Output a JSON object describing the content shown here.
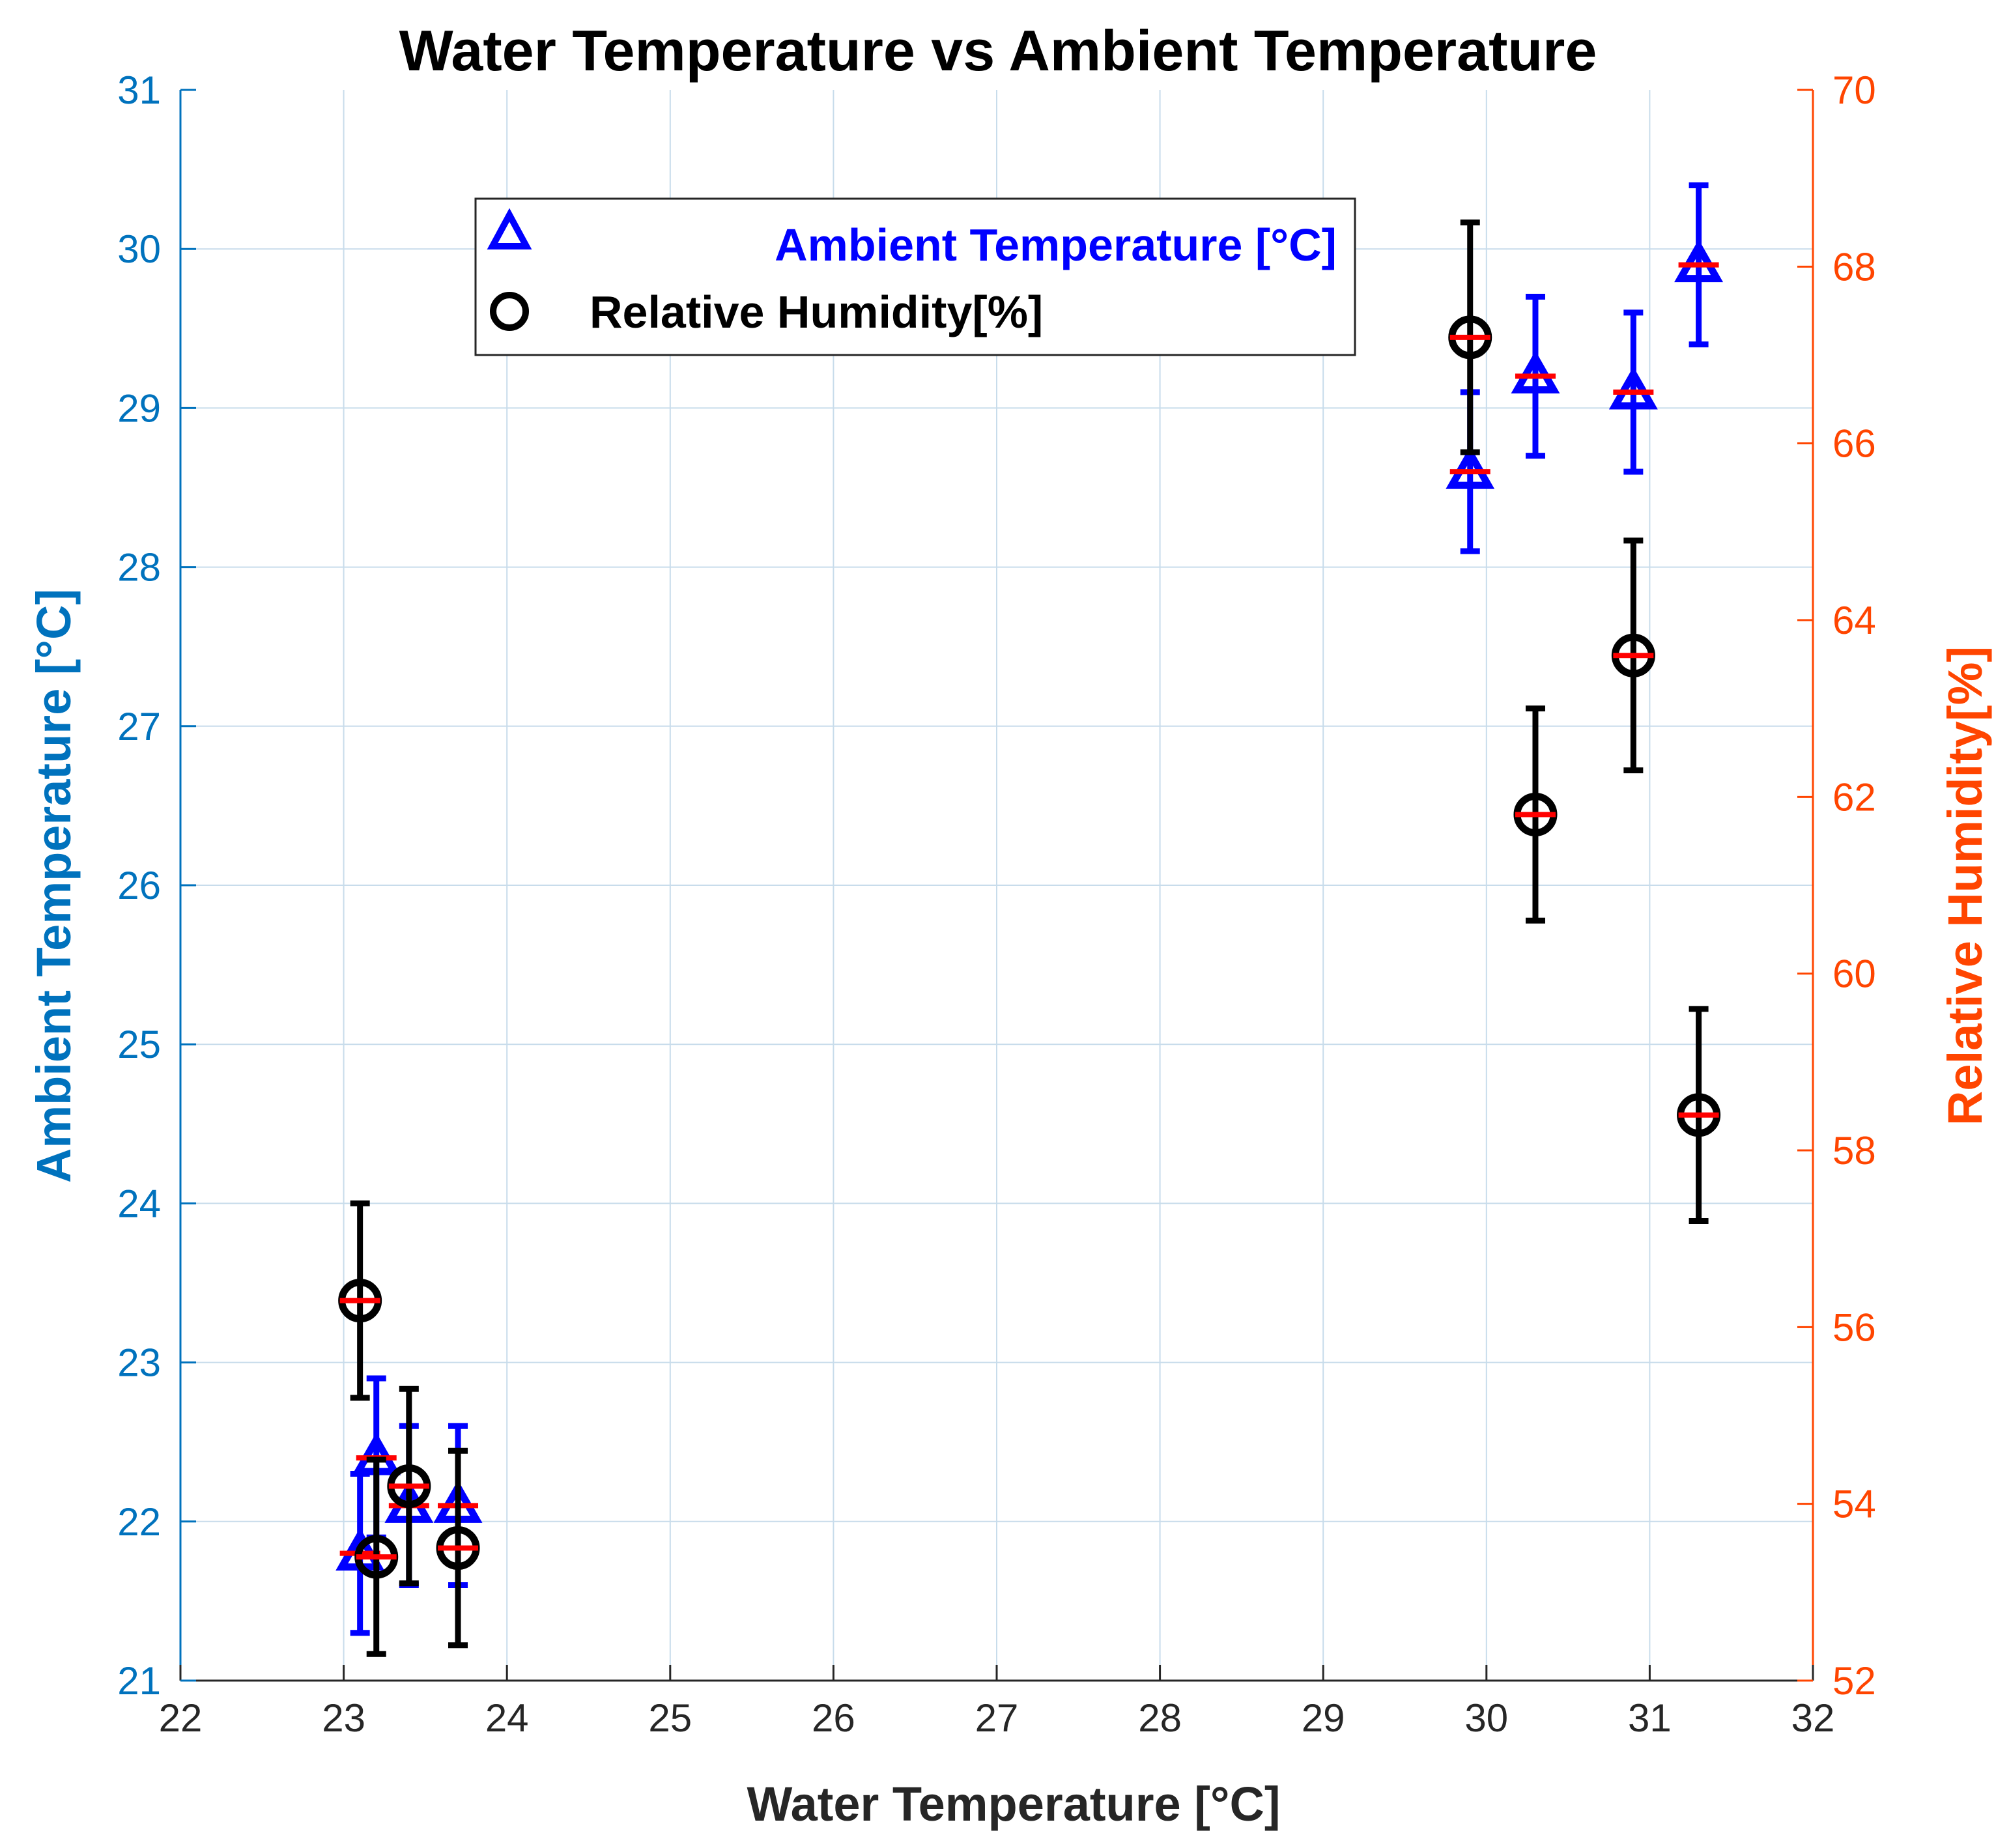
{
  "colors": {
    "ambient": "#0000FF",
    "humidity": "#000000",
    "mean_marker": "#FF0000",
    "left_axis": "#0072BD",
    "right_axis": "#FF4500",
    "grid": "#C8DCEB"
  },
  "chart_data": {
    "type": "scatter",
    "title": "Water Temperature vs Ambient Temperature",
    "xlabel": "Water Temperature [°C]",
    "ylabel_left": "Ambient Temperature [°C]",
    "ylabel_right": "Relative Humidity[%]",
    "xlim": [
      22,
      32
    ],
    "ylim_left": [
      21,
      31
    ],
    "ylim_right": [
      52,
      70
    ],
    "xticks": [
      22,
      23,
      24,
      25,
      26,
      27,
      28,
      29,
      30,
      31,
      32
    ],
    "yticks_left": [
      21,
      22,
      23,
      24,
      25,
      26,
      27,
      28,
      29,
      30,
      31
    ],
    "yticks_right": [
      52,
      54,
      56,
      58,
      60,
      62,
      64,
      66,
      68,
      70
    ],
    "grid": true,
    "legend_position": "top-center",
    "series": [
      {
        "name": "Ambient Temperature [°C]",
        "axis": "left",
        "marker": "triangle",
        "points": [
          {
            "x": 23.1,
            "y": 21.8,
            "err": 0.5
          },
          {
            "x": 23.2,
            "y": 22.4,
            "err": 0.5
          },
          {
            "x": 23.4,
            "y": 22.1,
            "err": 0.5
          },
          {
            "x": 23.7,
            "y": 22.1,
            "err": 0.5
          },
          {
            "x": 29.9,
            "y": 28.6,
            "err": 0.5
          },
          {
            "x": 30.3,
            "y": 29.2,
            "err": 0.5
          },
          {
            "x": 30.9,
            "y": 29.1,
            "err": 0.5
          },
          {
            "x": 31.3,
            "y": 29.9,
            "err": 0.5
          }
        ]
      },
      {
        "name": "Relative Humidity[%]",
        "axis": "right",
        "marker": "circle",
        "points": [
          {
            "x": 23.1,
            "y": 56.3,
            "err": 1.1
          },
          {
            "x": 23.2,
            "y": 53.4,
            "err": 1.1
          },
          {
            "x": 23.4,
            "y": 54.2,
            "err": 1.1
          },
          {
            "x": 23.7,
            "y": 53.5,
            "err": 1.1
          },
          {
            "x": 29.9,
            "y": 67.2,
            "err": 1.3
          },
          {
            "x": 30.3,
            "y": 61.8,
            "err": 1.2
          },
          {
            "x": 30.9,
            "y": 63.6,
            "err": 1.3
          },
          {
            "x": 31.3,
            "y": 58.4,
            "err": 1.2
          }
        ]
      }
    ]
  }
}
